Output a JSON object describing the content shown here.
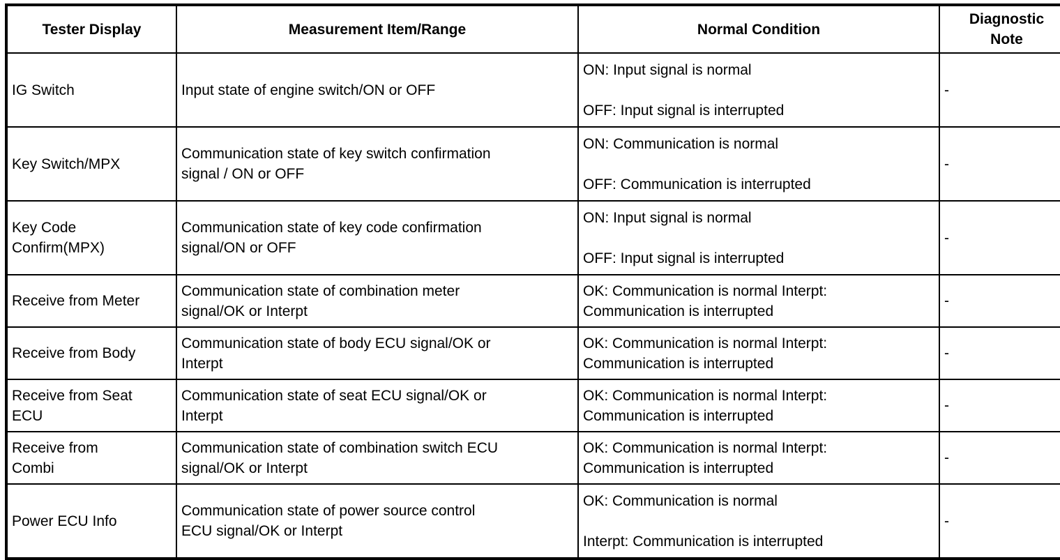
{
  "table": {
    "columns": [
      {
        "label": "Tester Display"
      },
      {
        "label": "Measurement Item/Range"
      },
      {
        "label": "Normal Condition"
      },
      {
        "label": "Diagnostic Note"
      }
    ],
    "rows": [
      {
        "tester_display": [
          "IG Switch"
        ],
        "measurement_item_range": [
          "Input state of engine switch/ON or OFF"
        ],
        "normal_condition": [
          "ON: Input signal is normal",
          "",
          "OFF: Input signal is interrupted"
        ],
        "diagnostic_note": "-"
      },
      {
        "tester_display": [
          "Key Switch/MPX"
        ],
        "measurement_item_range": [
          "Communication state of key switch confirmation",
          "signal / ON or OFF"
        ],
        "normal_condition": [
          "ON: Communication is normal",
          "",
          "OFF: Communication is interrupted"
        ],
        "diagnostic_note": "-"
      },
      {
        "tester_display": [
          "Key Code",
          "Confirm(MPX)"
        ],
        "measurement_item_range": [
          "Communication state of key code confirmation",
          "signal/ON or OFF"
        ],
        "normal_condition": [
          "ON: Input signal is normal",
          "",
          "OFF: Input signal is interrupted"
        ],
        "diagnostic_note": "-"
      },
      {
        "tester_display": [
          "Receive from Meter"
        ],
        "measurement_item_range": [
          "Communication state of combination meter",
          "signal/OK or Interpt"
        ],
        "normal_condition": [
          "OK: Communication is normal Interpt:",
          "Communication is interrupted"
        ],
        "diagnostic_note": "-"
      },
      {
        "tester_display": [
          "Receive from Body"
        ],
        "measurement_item_range": [
          "Communication state of body ECU signal/OK or",
          "Interpt"
        ],
        "normal_condition": [
          "OK: Communication is normal Interpt:",
          "Communication is interrupted"
        ],
        "diagnostic_note": "-"
      },
      {
        "tester_display": [
          "Receive from Seat",
          "ECU"
        ],
        "measurement_item_range": [
          "Communication state of seat ECU signal/OK or",
          "Interpt"
        ],
        "normal_condition": [
          "OK: Communication is normal Interpt:",
          "Communication is interrupted"
        ],
        "diagnostic_note": "-"
      },
      {
        "tester_display": [
          "Receive from",
          "Combi"
        ],
        "measurement_item_range": [
          "Communication state of combination switch ECU",
          "signal/OK or Interpt"
        ],
        "normal_condition": [
          "OK: Communication is normal Interpt:",
          "Communication is interrupted"
        ],
        "diagnostic_note": "-"
      },
      {
        "tester_display": [
          "Power ECU Info"
        ],
        "measurement_item_range": [
          "Communication state of power source control",
          "ECU signal/OK or Interpt"
        ],
        "normal_condition": [
          "OK: Communication is normal",
          "",
          "Interpt: Communication is interrupted"
        ],
        "diagnostic_note": "-"
      }
    ]
  },
  "colors": {
    "border": "#000000",
    "background": "#ffffff",
    "text": "#000000"
  }
}
